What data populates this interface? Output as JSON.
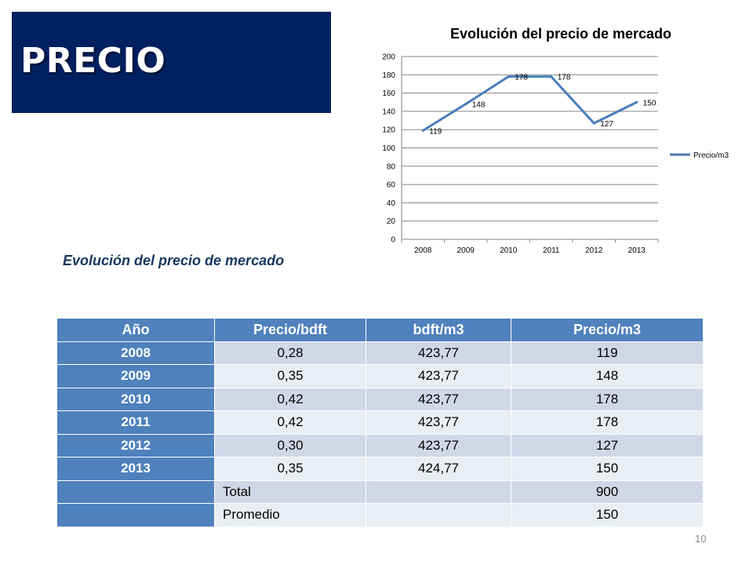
{
  "slide": {
    "title": "PRECIO",
    "subtitle": "Evolución del precio de mercado",
    "page_number": "10",
    "colors": {
      "title_bg": "#002060",
      "table_header": "#4F81BD",
      "row_odd": "#D0D8E8",
      "row_even": "#E9EDF4",
      "line": "#4A7EBB"
    }
  },
  "chart_data": {
    "type": "line",
    "title": "Evolución del precio de mercado",
    "categories": [
      "2008",
      "2009",
      "2010",
      "2011",
      "2012",
      "2013"
    ],
    "series": [
      {
        "name": "Precio/m3",
        "values": [
          119,
          148,
          178,
          178,
          127,
          150
        ]
      }
    ],
    "data_labels": [
      "119",
      "148",
      "178",
      "178",
      "127",
      "150"
    ],
    "ylim": [
      0,
      200
    ],
    "yticks": [
      "0",
      "20",
      "40",
      "60",
      "80",
      "100",
      "120",
      "140",
      "160",
      "180",
      "200"
    ],
    "grid": true,
    "legend_position": "right"
  },
  "table": {
    "headers": [
      "Año",
      "Precio/bdft",
      "bdft/m3",
      "Precio/m3"
    ],
    "rows": [
      [
        "2008",
        "0,28",
        "423,77",
        "119"
      ],
      [
        "2009",
        "0,35",
        "423,77",
        "148"
      ],
      [
        "2010",
        "0,42",
        "423,77",
        "178"
      ],
      [
        "2011",
        "0,42",
        "423,77",
        "178"
      ],
      [
        "2012",
        "0,30",
        "423,77",
        "127"
      ],
      [
        "2013",
        "0,35",
        "424,77",
        "150"
      ]
    ],
    "summary": [
      {
        "label": "Total",
        "value": "900"
      },
      {
        "label": "Promedio",
        "value": "150"
      }
    ]
  }
}
